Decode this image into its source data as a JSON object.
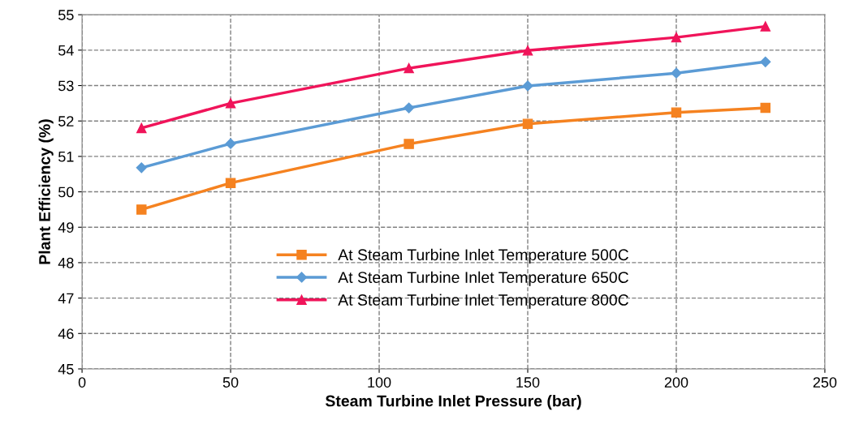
{
  "chart_data": {
    "type": "line",
    "xlabel": "Steam Turbine Inlet Pressure (bar)",
    "ylabel": "Plant Efficiency (%)",
    "xlim": [
      0,
      250
    ],
    "xticks": [
      0,
      50,
      100,
      150,
      200,
      250
    ],
    "ylim": [
      45,
      55
    ],
    "yticks": [
      45,
      46,
      47,
      48,
      49,
      50,
      51,
      52,
      53,
      54,
      55
    ],
    "grid": true,
    "legend": "bottom",
    "line_style": "solid",
    "series": [
      {
        "name": "At Steam Turbine Inlet Temperature 500C",
        "color": "#f58220",
        "marker": "square",
        "x": [
          20,
          50,
          110,
          150,
          200,
          230
        ],
        "values": [
          49.5,
          50.25,
          51.35,
          51.92,
          52.24,
          52.37
        ]
      },
      {
        "name": "At Steam Turbine Inlet Temperature 650C",
        "color": "#5b9bd5",
        "marker": "diamond",
        "x": [
          20,
          50,
          110,
          150,
          200,
          230
        ],
        "values": [
          50.68,
          51.36,
          52.37,
          52.99,
          53.35,
          53.67
        ]
      },
      {
        "name": "At Steam Turbine Inlet Temperature 800C",
        "color": "#f0145a",
        "marker": "triangle",
        "x": [
          20,
          50,
          110,
          150,
          200,
          230
        ],
        "values": [
          51.8,
          52.5,
          53.49,
          53.99,
          54.36,
          54.67
        ]
      }
    ]
  }
}
